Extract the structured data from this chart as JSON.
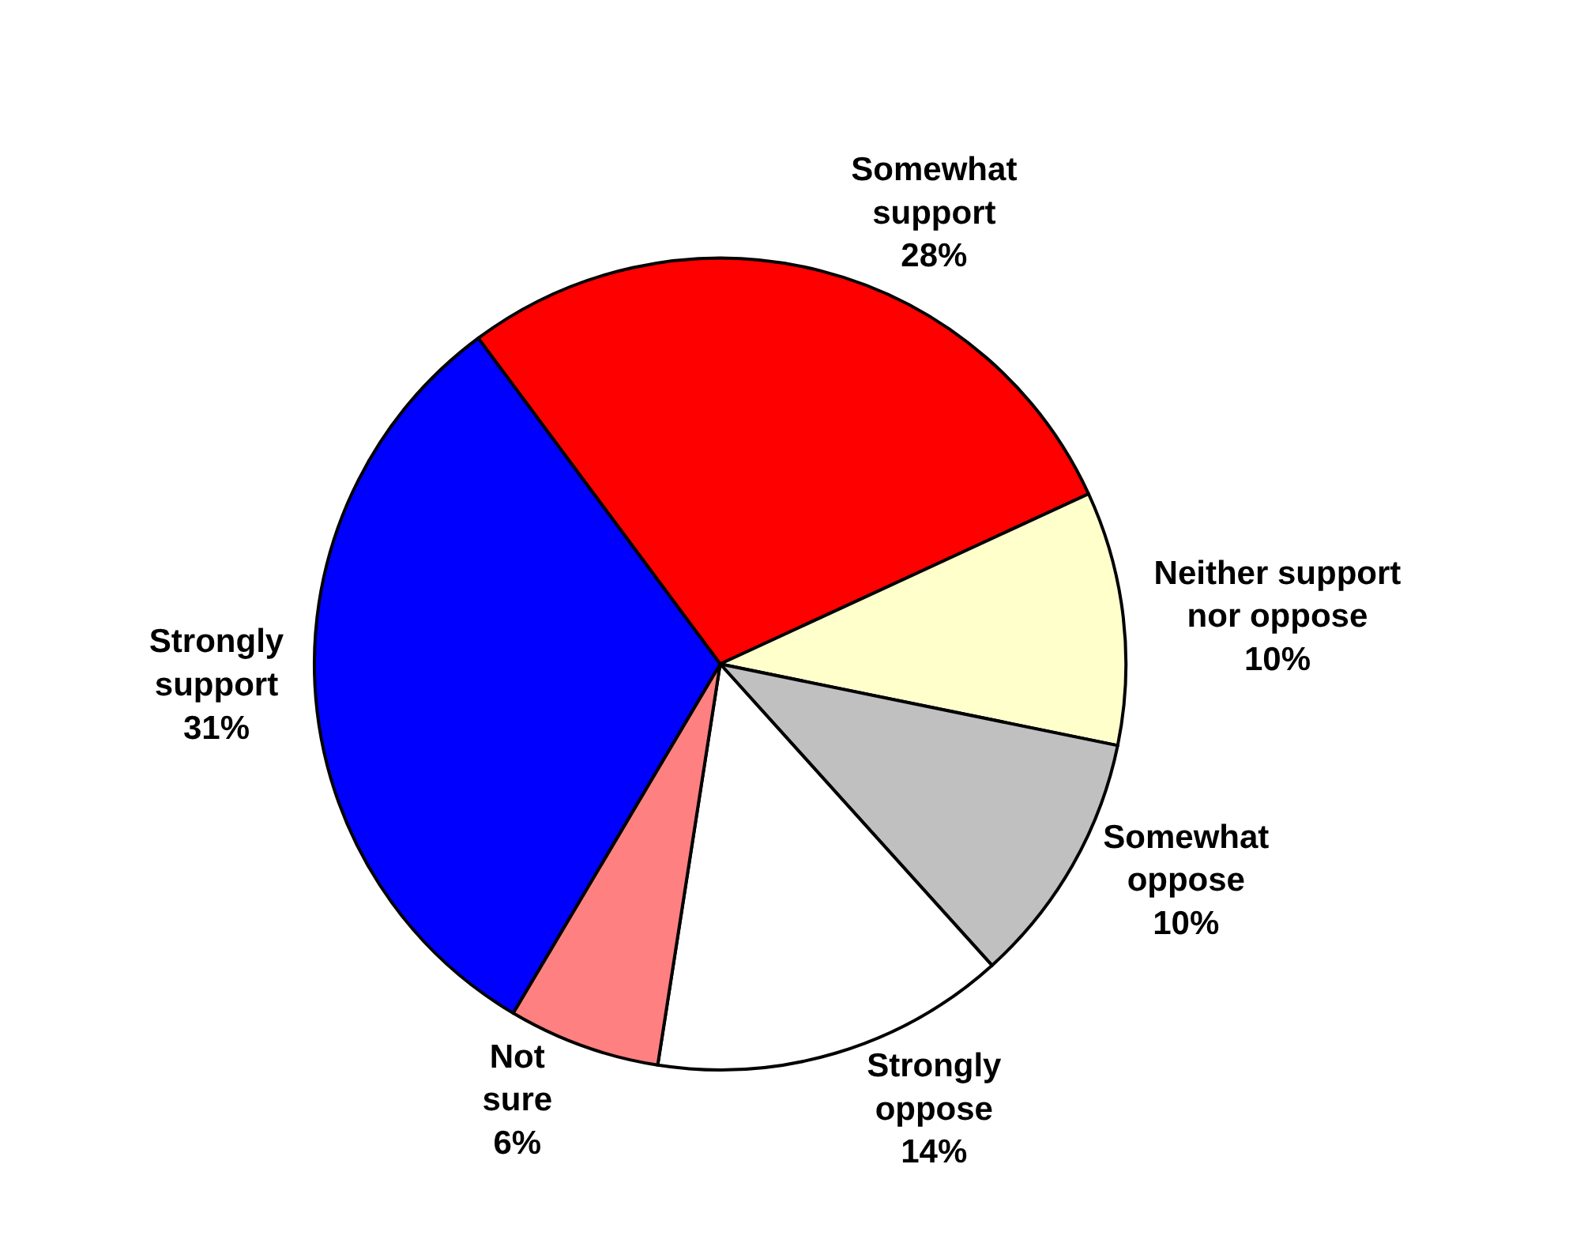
{
  "chart_data": {
    "type": "pie",
    "categories": [
      "Somewhat\nsupport",
      "Neither support\nnor oppose",
      "Somewhat\noppose",
      "Strongly\noppose",
      "Not\nsure",
      "Strongly\nsupport"
    ],
    "values": [
      28,
      10,
      10,
      14,
      6,
      31
    ],
    "value_labels": [
      "28%",
      "10%",
      "10%",
      "14%",
      "6%",
      "31%"
    ],
    "colors": [
      "#ff0000",
      "#ffffcc",
      "#c0c0c0",
      "#ffffff",
      "#ff8080",
      "#0000ff"
    ],
    "legend": false
  }
}
